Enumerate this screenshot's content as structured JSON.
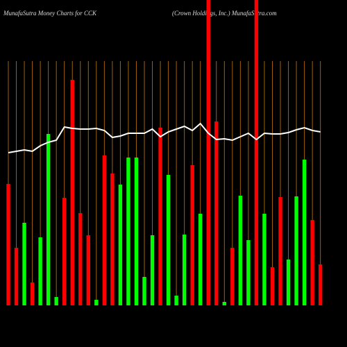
{
  "chart_data": {
    "type": "bar",
    "title": "MunafaSutra  Money  Charts for CCK",
    "subtitle": "(Crown  Holdings,  Inc.) MunafaSutra.com",
    "values": [
      175,
      83,
      119,
      33,
      98,
      247,
      12,
      155,
      325,
      133,
      101,
      8,
      216,
      190,
      174,
      213,
      213,
      41,
      101,
      256,
      188,
      14,
      102,
      202,
      132,
      440,
      265,
      5,
      83,
      158,
      94,
      440,
      132,
      55,
      156,
      66,
      157,
      210,
      123,
      59
    ],
    "colors": [
      "#ff0000",
      "#ff0000",
      "#00ff00",
      "#ff0000",
      "#00ff00",
      "#00ff00",
      "#00ff00",
      "#ff0000",
      "#ff0000",
      "#ff0000",
      "#ff0000",
      "#00ff00",
      "#ff0000",
      "#ff0000",
      "#00ff00",
      "#00ff00",
      "#00ff00",
      "#00ff00",
      "#00ff00",
      "#ff0000",
      "#00ff00",
      "#00ff00",
      "#00ff00",
      "#ff0000",
      "#00ff00",
      "#ff0000",
      "#ff0000",
      "#00ff00",
      "#ff0000",
      "#00ff00",
      "#00ff00",
      "#ff0000",
      "#00ff00",
      "#ff0000",
      "#ff0000",
      "#00ff00",
      "#00ff00",
      "#00ff00",
      "#ff0000",
      "#ff0000"
    ],
    "line": {
      "color": "#ffffff",
      "values": [
        220,
        222,
        224,
        222,
        230,
        235,
        238,
        257,
        255,
        254,
        254,
        255,
        252,
        242,
        244,
        248,
        248,
        248,
        254,
        243,
        250,
        254,
        258,
        252,
        262,
        248,
        239,
        240,
        238,
        243,
        248,
        239,
        248,
        247,
        247,
        249,
        253,
        256,
        252,
        250
      ]
    },
    "ylim": [
      0,
      440
    ],
    "grid": true,
    "grid_color": "#a0620a"
  }
}
